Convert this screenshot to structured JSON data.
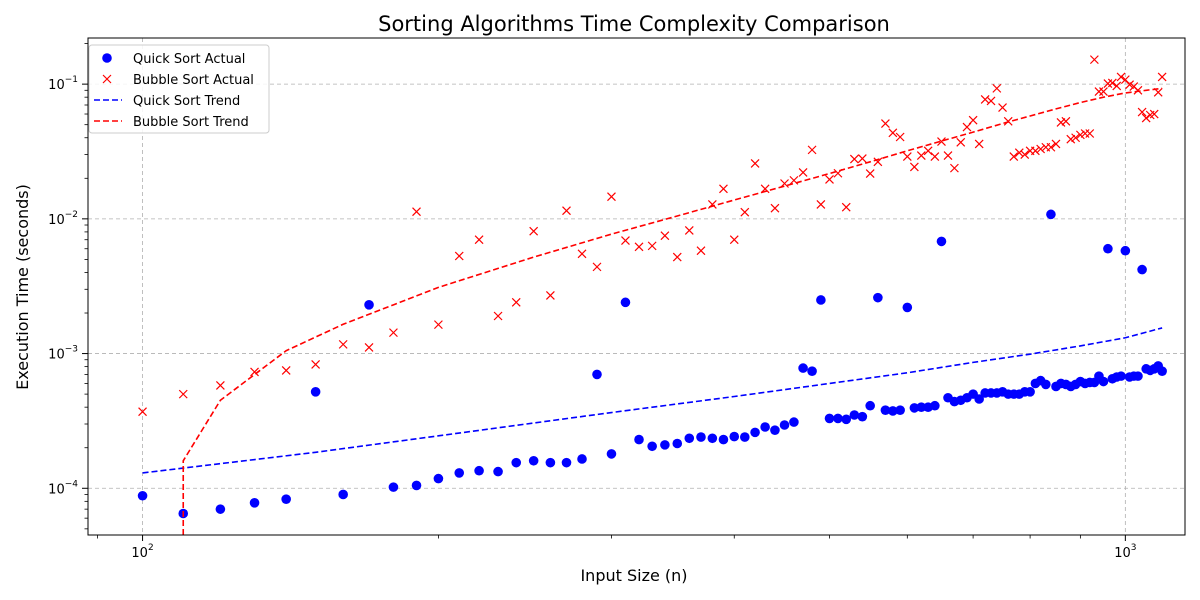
{
  "chart_data": {
    "type": "scatter",
    "title": "Sorting Algorithms Time Complexity Comparison",
    "xlabel": "Input Size (n)",
    "ylabel": "Execution Time (seconds)",
    "xscale": "log",
    "yscale": "log",
    "xlim": [
      88,
      1150
    ],
    "ylim": [
      4.5e-05,
      0.22
    ],
    "grid": true,
    "legend_position": "top-left",
    "x_ticks": [
      {
        "value": 100,
        "label": "10",
        "exp": "2"
      },
      {
        "value": 1000,
        "label": "10",
        "exp": "3"
      }
    ],
    "y_ticks": [
      {
        "value": 0.0001,
        "label": "10",
        "exp": "−4"
      },
      {
        "value": 0.001,
        "label": "10",
        "exp": "−3"
      },
      {
        "value": 0.01,
        "label": "10",
        "exp": "−2"
      },
      {
        "value": 0.1,
        "label": "10",
        "exp": "−1"
      }
    ],
    "series": [
      {
        "name": "Quick Sort Actual",
        "kind": "marker-dot",
        "color": "#0000ff",
        "points": [
          [
            100,
            8.8e-05
          ],
          [
            110,
            6.5e-05
          ],
          [
            120,
            7e-05
          ],
          [
            130,
            7.8e-05
          ],
          [
            140,
            8.3e-05
          ],
          [
            150,
            0.00052
          ],
          [
            160,
            9e-05
          ],
          [
            170,
            0.0023
          ],
          [
            180,
            0.000102
          ],
          [
            190,
            0.000105
          ],
          [
            200,
            0.000118
          ],
          [
            210,
            0.00013
          ],
          [
            220,
            0.000135
          ],
          [
            230,
            0.000133
          ],
          [
            240,
            0.000155
          ],
          [
            250,
            0.00016
          ],
          [
            260,
            0.000155
          ],
          [
            270,
            0.000155
          ],
          [
            280,
            0.000165
          ],
          [
            290,
            0.0007
          ],
          [
            300,
            0.00018
          ],
          [
            310,
            0.0024
          ],
          [
            320,
            0.00023
          ],
          [
            330,
            0.000205
          ],
          [
            340,
            0.00021
          ],
          [
            350,
            0.000215
          ],
          [
            360,
            0.000235
          ],
          [
            370,
            0.00024
          ],
          [
            380,
            0.000235
          ],
          [
            390,
            0.00023
          ],
          [
            400,
            0.000242
          ],
          [
            410,
            0.00024
          ],
          [
            420,
            0.00026
          ],
          [
            430,
            0.000285
          ],
          [
            440,
            0.00027
          ],
          [
            450,
            0.000295
          ],
          [
            460,
            0.00031
          ],
          [
            470,
            0.00078
          ],
          [
            480,
            0.00074
          ],
          [
            490,
            0.0025
          ],
          [
            500,
            0.00033
          ],
          [
            510,
            0.00033
          ],
          [
            520,
            0.000325
          ],
          [
            530,
            0.00035
          ],
          [
            540,
            0.00034
          ],
          [
            550,
            0.00041
          ],
          [
            560,
            0.0026
          ],
          [
            570,
            0.00038
          ],
          [
            580,
            0.000375
          ],
          [
            590,
            0.00038
          ],
          [
            600,
            0.0022
          ],
          [
            610,
            0.000395
          ],
          [
            620,
            0.0004
          ],
          [
            630,
            0.0004
          ],
          [
            640,
            0.00041
          ],
          [
            650,
            0.0068
          ],
          [
            660,
            0.00047
          ],
          [
            670,
            0.00044
          ],
          [
            680,
            0.00045
          ],
          [
            690,
            0.00047
          ],
          [
            700,
            0.0005
          ],
          [
            710,
            0.00046
          ],
          [
            720,
            0.00051
          ],
          [
            730,
            0.00051
          ],
          [
            740,
            0.00051
          ],
          [
            750,
            0.00052
          ],
          [
            760,
            0.0005
          ],
          [
            770,
            0.0005
          ],
          [
            780,
            0.0005
          ],
          [
            790,
            0.00052
          ],
          [
            800,
            0.00052
          ],
          [
            810,
            0.0006
          ],
          [
            820,
            0.00063
          ],
          [
            830,
            0.00059
          ],
          [
            840,
            0.0108
          ],
          [
            850,
            0.00057
          ],
          [
            860,
            0.0006
          ],
          [
            870,
            0.00059
          ],
          [
            880,
            0.00057
          ],
          [
            890,
            0.00059
          ],
          [
            900,
            0.00062
          ],
          [
            910,
            0.0006
          ],
          [
            920,
            0.00061
          ],
          [
            930,
            0.00061
          ],
          [
            940,
            0.00068
          ],
          [
            950,
            0.00062
          ],
          [
            960,
            0.006
          ],
          [
            970,
            0.00065
          ],
          [
            980,
            0.00067
          ],
          [
            990,
            0.00068
          ],
          [
            1000,
            0.0058
          ],
          [
            1010,
            0.00067
          ],
          [
            1020,
            0.00068
          ],
          [
            1030,
            0.00068
          ],
          [
            1040,
            0.0042
          ],
          [
            1050,
            0.00077
          ],
          [
            1060,
            0.00075
          ],
          [
            1070,
            0.00077
          ],
          [
            1080,
            0.00081
          ],
          [
            1090,
            0.00074
          ]
        ]
      },
      {
        "name": "Bubble Sort Actual",
        "kind": "marker-x",
        "color": "#ff0000",
        "points": [
          [
            100,
            0.00037
          ],
          [
            110,
            0.0005
          ],
          [
            120,
            0.00058
          ],
          [
            130,
            0.00073
          ],
          [
            140,
            0.00075
          ],
          [
            150,
            0.00083
          ],
          [
            160,
            0.00117
          ],
          [
            170,
            0.00111
          ],
          [
            180,
            0.00143
          ],
          [
            190,
            0.0113
          ],
          [
            200,
            0.00164
          ],
          [
            210,
            0.0053
          ],
          [
            220,
            0.007
          ],
          [
            230,
            0.0019
          ],
          [
            240,
            0.0024
          ],
          [
            250,
            0.0081
          ],
          [
            260,
            0.0027
          ],
          [
            270,
            0.0115
          ],
          [
            280,
            0.0055
          ],
          [
            290,
            0.0044
          ],
          [
            300,
            0.0146
          ],
          [
            310,
            0.0069
          ],
          [
            320,
            0.0062
          ],
          [
            330,
            0.0063
          ],
          [
            340,
            0.0075
          ],
          [
            350,
            0.0052
          ],
          [
            360,
            0.0082
          ],
          [
            370,
            0.0058
          ],
          [
            380,
            0.0128
          ],
          [
            390,
            0.0167
          ],
          [
            400,
            0.007
          ],
          [
            410,
            0.0112
          ],
          [
            420,
            0.0258
          ],
          [
            430,
            0.0167
          ],
          [
            440,
            0.012
          ],
          [
            450,
            0.0183
          ],
          [
            460,
            0.0193
          ],
          [
            470,
            0.0221
          ],
          [
            480,
            0.0325
          ],
          [
            490,
            0.0128
          ],
          [
            500,
            0.0196
          ],
          [
            510,
            0.0218
          ],
          [
            520,
            0.0122
          ],
          [
            530,
            0.0278
          ],
          [
            540,
            0.028
          ],
          [
            550,
            0.0217
          ],
          [
            560,
            0.0265
          ],
          [
            570,
            0.051
          ],
          [
            580,
            0.0435
          ],
          [
            590,
            0.0405
          ],
          [
            600,
            0.029
          ],
          [
            610,
            0.0243
          ],
          [
            620,
            0.0295
          ],
          [
            630,
            0.032
          ],
          [
            640,
            0.029
          ],
          [
            650,
            0.0375
          ],
          [
            660,
            0.0295
          ],
          [
            670,
            0.0238
          ],
          [
            680,
            0.037
          ],
          [
            690,
            0.048
          ],
          [
            700,
            0.054
          ],
          [
            710,
            0.036
          ],
          [
            720,
            0.077
          ],
          [
            730,
            0.075
          ],
          [
            740,
            0.093
          ],
          [
            750,
            0.067
          ],
          [
            760,
            0.053
          ],
          [
            770,
            0.029
          ],
          [
            780,
            0.031
          ],
          [
            790,
            0.03
          ],
          [
            800,
            0.032
          ],
          [
            810,
            0.032
          ],
          [
            820,
            0.033
          ],
          [
            830,
            0.034
          ],
          [
            840,
            0.034
          ],
          [
            850,
            0.036
          ],
          [
            860,
            0.052
          ],
          [
            870,
            0.053
          ],
          [
            880,
            0.039
          ],
          [
            890,
            0.04
          ],
          [
            900,
            0.042
          ],
          [
            910,
            0.043
          ],
          [
            920,
            0.043
          ],
          [
            930,
            0.152
          ],
          [
            940,
            0.088
          ],
          [
            950,
            0.088
          ],
          [
            960,
            0.101
          ],
          [
            970,
            0.102
          ],
          [
            980,
            0.097
          ],
          [
            990,
            0.113
          ],
          [
            1000,
            0.108
          ],
          [
            1010,
            0.099
          ],
          [
            1020,
            0.096
          ],
          [
            1030,
            0.09
          ],
          [
            1040,
            0.062
          ],
          [
            1050,
            0.056
          ],
          [
            1060,
            0.059
          ],
          [
            1070,
            0.06
          ],
          [
            1080,
            0.087
          ],
          [
            1090,
            0.113
          ]
        ]
      },
      {
        "name": "Quick Sort Trend",
        "kind": "dashed-line",
        "color": "#0000ff",
        "points": [
          [
            100,
            0.00013
          ],
          [
            150,
            0.000185
          ],
          [
            200,
            0.000245
          ],
          [
            300,
            0.000365
          ],
          [
            400,
            0.00048
          ],
          [
            500,
            0.0006
          ],
          [
            600,
            0.00072
          ],
          [
            700,
            0.00086
          ],
          [
            800,
            0.00099
          ],
          [
            900,
            0.00114
          ],
          [
            1000,
            0.00131
          ],
          [
            1090,
            0.00155
          ]
        ]
      },
      {
        "name": "Bubble Sort Trend",
        "kind": "dashed-line",
        "color": "#ff0000",
        "points": [
          [
            110,
            4.5e-05
          ],
          [
            110,
            0.00016
          ],
          [
            120,
            0.00045
          ],
          [
            140,
            0.00105
          ],
          [
            160,
            0.00165
          ],
          [
            180,
            0.0023
          ],
          [
            200,
            0.0031
          ],
          [
            250,
            0.0052
          ],
          [
            300,
            0.0077
          ],
          [
            350,
            0.0105
          ],
          [
            400,
            0.0138
          ],
          [
            450,
            0.0175
          ],
          [
            500,
            0.0217
          ],
          [
            550,
            0.0265
          ],
          [
            600,
            0.032
          ],
          [
            650,
            0.0378
          ],
          [
            700,
            0.044
          ],
          [
            750,
            0.051
          ],
          [
            800,
            0.058
          ],
          [
            850,
            0.0655
          ],
          [
            900,
            0.073
          ],
          [
            950,
            0.08
          ],
          [
            1000,
            0.086
          ],
          [
            1050,
            0.09
          ],
          [
            1090,
            0.093
          ]
        ]
      }
    ]
  }
}
